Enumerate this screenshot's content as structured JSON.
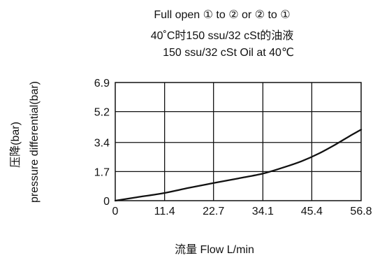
{
  "chart_data": {
    "type": "line",
    "title_lines": [
      "Full open  ① to ② or ② to ①",
      "40˚C时150 ssu/32 cSt的油液",
      "150 ssu/32 cSt Oil at 40℃"
    ],
    "xlabel": "流量 Flow  L/min",
    "ylabel_lines": [
      "压降(bar)",
      "pressure differential(bar)"
    ],
    "x_ticks": [
      "0",
      "11.4",
      "22.7",
      "34.1",
      "45.4",
      "56.8"
    ],
    "y_ticks": [
      "0",
      "1.7",
      "3.4",
      "5.2",
      "6.9"
    ],
    "xlim": [
      0,
      56.8
    ],
    "ylim": [
      0,
      6.9
    ],
    "grid": true,
    "series": [
      {
        "x": [
          0,
          5,
          11.4,
          17,
          22.7,
          28.4,
          34.1,
          39,
          43,
          47,
          51,
          54,
          56.8
        ],
        "y": [
          0,
          0.2,
          0.45,
          0.75,
          1.03,
          1.3,
          1.58,
          1.95,
          2.3,
          2.75,
          3.3,
          3.75,
          4.15
        ]
      }
    ]
  }
}
